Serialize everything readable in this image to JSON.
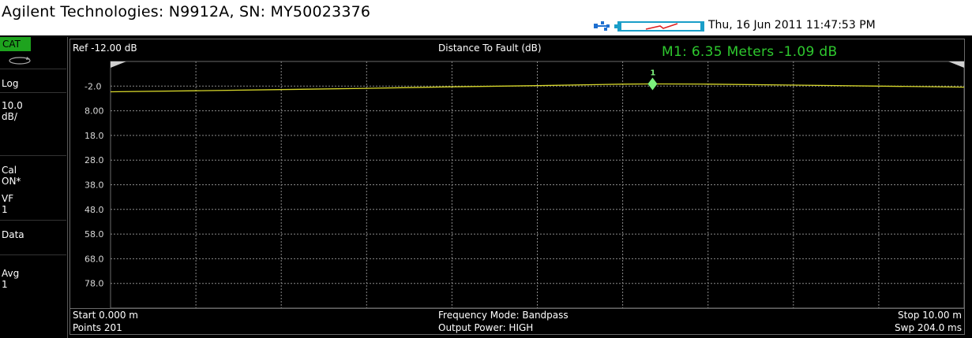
{
  "app": {
    "title": "Agilent Technologies: N9912A, SN: MY50023376",
    "datetime": "Thu, 16 Jun 2011 11:47:53 PM"
  },
  "sidebar": {
    "mode_badge": "CAT",
    "scale_type": "Log",
    "scale_value": "10.0",
    "scale_unit": "dB/",
    "cal_label": "Cal",
    "cal_state": "ON*",
    "vf_label": "VF",
    "vf_value": "1",
    "data_label": "Data",
    "avg_label": "Avg",
    "avg_value": "1"
  },
  "plot": {
    "ref_label": "Ref -12.00 dB",
    "title": "Distance To Fault (dB)",
    "marker_readout": "M1:  6.35  Meters  -1.09 dB",
    "marker_id": "1",
    "colors": {
      "trace": "#d6d62a",
      "marker": "#7cf07c",
      "readout": "#2ec82e",
      "grid": "#8a8a8a",
      "badge": "#1ea31e"
    }
  },
  "chart_data": {
    "type": "line",
    "title": "Distance To Fault (dB)",
    "xlabel": "",
    "ylabel": "",
    "xlim": [
      0,
      10
    ],
    "ylim": [
      -92,
      8
    ],
    "reference_level": -12.0,
    "scale_per_div": 10.0,
    "y_tick_labels": [
      "-2.0",
      "8.00",
      "18.0",
      "28.0",
      "38.0",
      "48.0",
      "58.0",
      "68.0",
      "78.0"
    ],
    "grid": true,
    "series": [
      {
        "x": [
          0,
          1,
          2,
          3,
          4,
          5,
          6,
          6.35,
          7,
          8,
          9,
          10
        ],
        "values": [
          -4.3,
          -3.9,
          -3.4,
          -2.9,
          -2.3,
          -1.8,
          -1.2,
          -1.09,
          -1.2,
          -1.6,
          -2.0,
          -2.4
        ]
      }
    ],
    "markers": [
      {
        "label": "1",
        "x": 6.35,
        "y": -1.09
      }
    ]
  },
  "footer": {
    "start": "Start 0.000 m",
    "points": "Points 201",
    "freq_mode": "Frequency Mode: Bandpass",
    "output_power": "Output Power: HIGH",
    "stop": "Stop 10.00 m",
    "sweep": "Swp 204.0 ms"
  }
}
